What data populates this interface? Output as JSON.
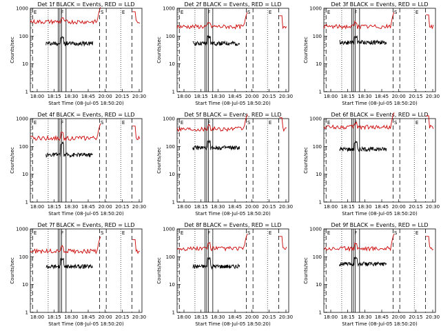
{
  "figure": {
    "x_ticks": [
      "18:00",
      "18:15",
      "18:30",
      "18:45",
      "20:00",
      "20:15",
      "20:30"
    ],
    "y_ticks": [
      "1",
      "10",
      "100",
      "1000"
    ],
    "xlabel": "Start Time (08-Jul-05 18:50:20)",
    "ylabel": "Counts/sec",
    "colors": {
      "events": "#000000",
      "lld": "#cc0000"
    },
    "markers": {
      "flare": "F",
      "eclipse": "E",
      "saa": "S"
    }
  },
  "chart_data": [
    {
      "type": "line",
      "title": "Det 1f BLACK = Events, RED = LLD",
      "yscale": "log",
      "ylim": [
        1,
        1000
      ],
      "series": [
        {
          "name": "Events",
          "color": "#000000",
          "level": 55,
          "x_range": [
            0.14,
            0.56
          ],
          "spike": 90
        },
        {
          "name": "LLD",
          "color": "#cc0000",
          "level": 330,
          "x_range": [
            0,
            0.98
          ],
          "spike": 420
        }
      ]
    },
    {
      "type": "line",
      "title": "Det 2f BLACK = Events, RED = LLD",
      "yscale": "log",
      "ylim": [
        1,
        1000
      ],
      "series": [
        {
          "name": "Events",
          "color": "#000000",
          "level": 55,
          "x_range": [
            0.14,
            0.56
          ],
          "spike": 95
        },
        {
          "name": "LLD",
          "color": "#cc0000",
          "level": 220,
          "x_range": [
            0,
            0.98
          ],
          "spike": 300
        }
      ]
    },
    {
      "type": "line",
      "title": "Det 3f BLACK = Events, RED = LLD",
      "yscale": "log",
      "ylim": [
        1,
        1000
      ],
      "series": [
        {
          "name": "Events",
          "color": "#000000",
          "level": 60,
          "x_range": [
            0.14,
            0.56
          ],
          "spike": 95
        },
        {
          "name": "LLD",
          "color": "#cc0000",
          "level": 220,
          "x_range": [
            0,
            0.98
          ],
          "spike": 320
        }
      ]
    },
    {
      "type": "line",
      "title": "Det 4f BLACK = Events, RED = LLD",
      "yscale": "log",
      "ylim": [
        1,
        1000
      ],
      "series": [
        {
          "name": "Events",
          "color": "#000000",
          "level": 50,
          "x_range": [
            0.14,
            0.56
          ],
          "spike": 130
        },
        {
          "name": "LLD",
          "color": "#cc0000",
          "level": 200,
          "x_range": [
            0,
            0.98
          ],
          "spike": 300
        }
      ]
    },
    {
      "type": "line",
      "title": "Det 5f BLACK = Events, RED = LLD",
      "yscale": "log",
      "ylim": [
        1,
        1000
      ],
      "series": [
        {
          "name": "Events",
          "color": "#000000",
          "level": 90,
          "x_range": [
            0.14,
            0.56
          ],
          "spike": 150
        },
        {
          "name": "LLD",
          "color": "#cc0000",
          "level": 430,
          "x_range": [
            0,
            0.98
          ],
          "spike": 600
        }
      ]
    },
    {
      "type": "line",
      "title": "Det 6f BLACK = Events, RED = LLD",
      "yscale": "log",
      "ylim": [
        1,
        1000
      ],
      "series": [
        {
          "name": "Events",
          "color": "#000000",
          "level": 80,
          "x_range": [
            0.14,
            0.56
          ],
          "spike": 140
        },
        {
          "name": "LLD",
          "color": "#cc0000",
          "level": 500,
          "x_range": [
            0,
            0.98
          ],
          "spike": 700
        }
      ]
    },
    {
      "type": "line",
      "title": "Det 7f BLACK = Events, RED = LLD",
      "yscale": "log",
      "ylim": [
        1,
        1000
      ],
      "series": [
        {
          "name": "Events",
          "color": "#000000",
          "level": 45,
          "x_range": [
            0.14,
            0.56
          ],
          "spike": 80
        },
        {
          "name": "LLD",
          "color": "#cc0000",
          "level": 160,
          "x_range": [
            0,
            0.98
          ],
          "spike": 230
        }
      ]
    },
    {
      "type": "line",
      "title": "Det 8f BLACK = Events, RED = LLD",
      "yscale": "log",
      "ylim": [
        1,
        1000
      ],
      "series": [
        {
          "name": "Events",
          "color": "#000000",
          "level": 45,
          "x_range": [
            0.14,
            0.56
          ],
          "spike": 90
        },
        {
          "name": "LLD",
          "color": "#cc0000",
          "level": 200,
          "x_range": [
            0,
            0.98
          ],
          "spike": 300
        }
      ]
    },
    {
      "type": "line",
      "title": "Det 9f BLACK = Events, RED = LLD",
      "yscale": "log",
      "ylim": [
        1,
        1000
      ],
      "series": [
        {
          "name": "Events",
          "color": "#000000",
          "level": 55,
          "x_range": [
            0.14,
            0.56
          ],
          "spike": 90
        },
        {
          "name": "LLD",
          "color": "#cc0000",
          "level": 200,
          "x_range": [
            0,
            0.98
          ],
          "spike": 300
        }
      ]
    }
  ]
}
